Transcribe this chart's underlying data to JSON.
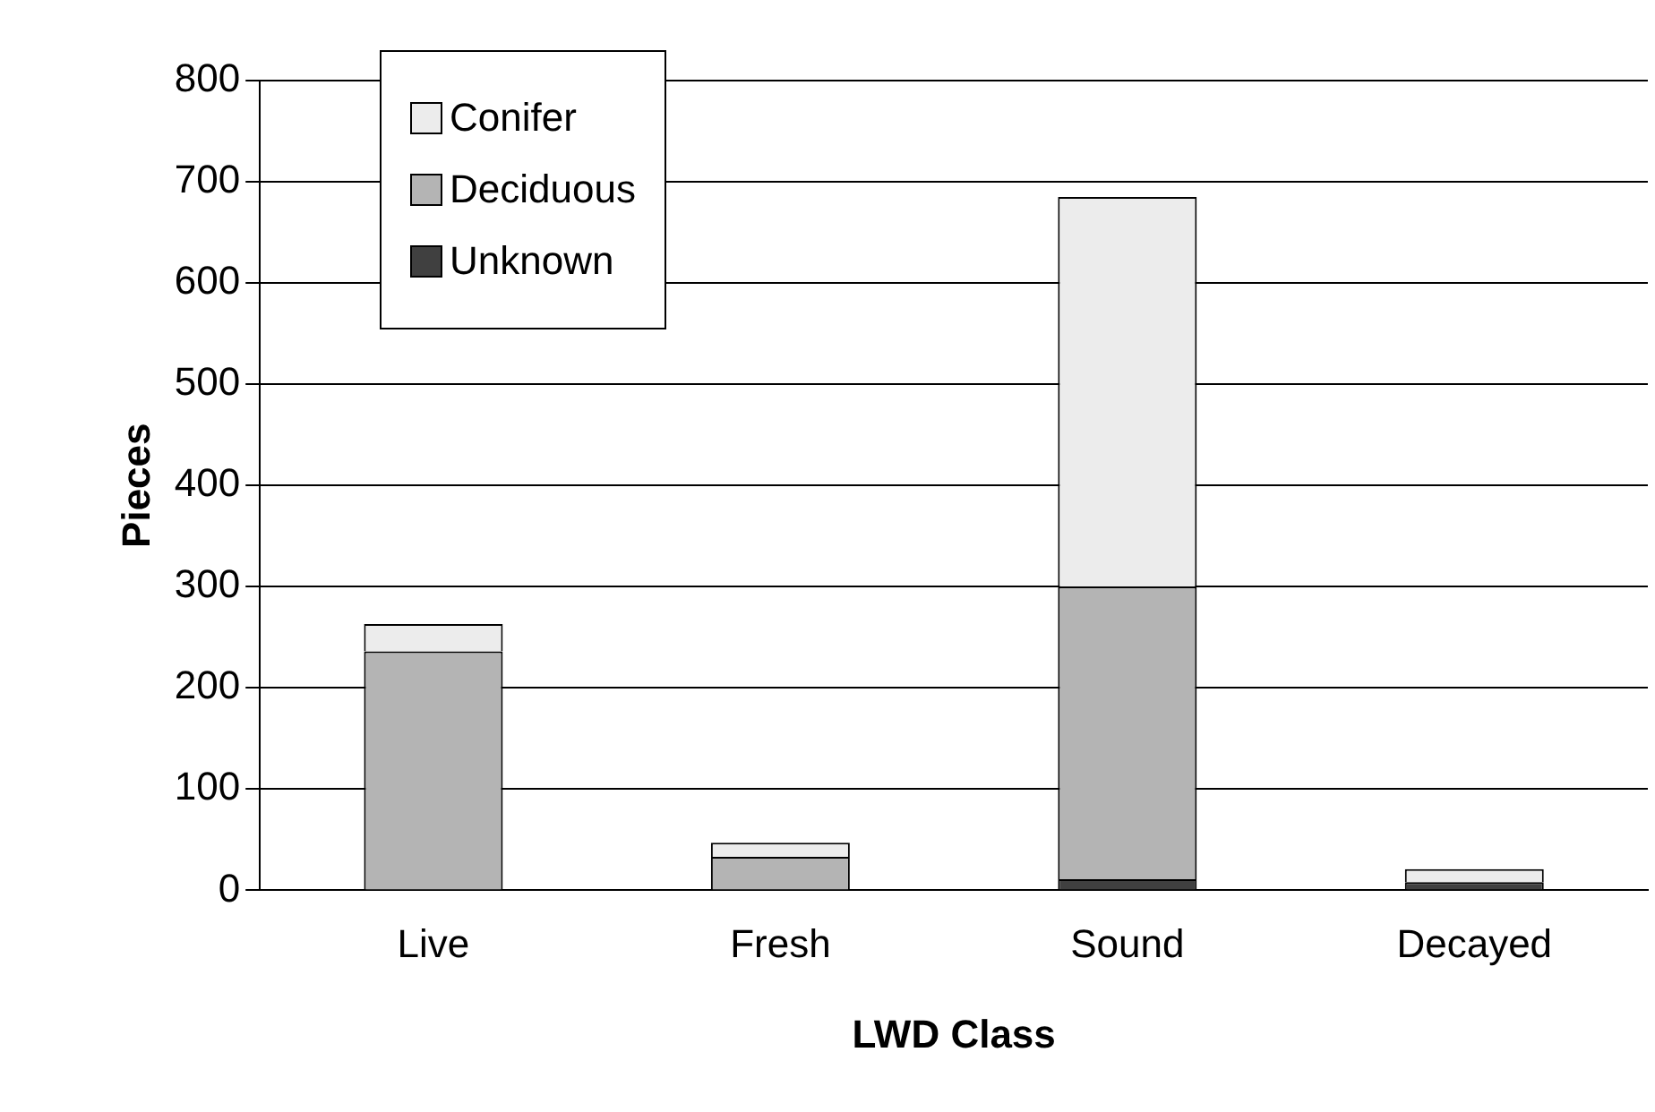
{
  "chart_data": {
    "type": "bar",
    "stacked": true,
    "xlabel": "LWD Class",
    "ylabel": "Pieces",
    "categories": [
      "Live",
      "Fresh",
      "Sound",
      "Decayed"
    ],
    "series": [
      {
        "name": "Unknown",
        "color": "#404040",
        "values": [
          null,
          0,
          11,
          8
        ]
      },
      {
        "name": "Deciduous",
        "color": "#b4b4b4",
        "values": [
          236,
          33,
          289,
          0
        ]
      },
      {
        "name": "Conifer",
        "color": "#ececec",
        "values": [
          27,
          14,
          385,
          13
        ]
      }
    ],
    "ylim": [
      0,
      800
    ],
    "yticks": [
      0,
      100,
      200,
      300,
      400,
      500,
      600,
      700,
      800
    ],
    "grid": "y",
    "legend": "top left"
  }
}
